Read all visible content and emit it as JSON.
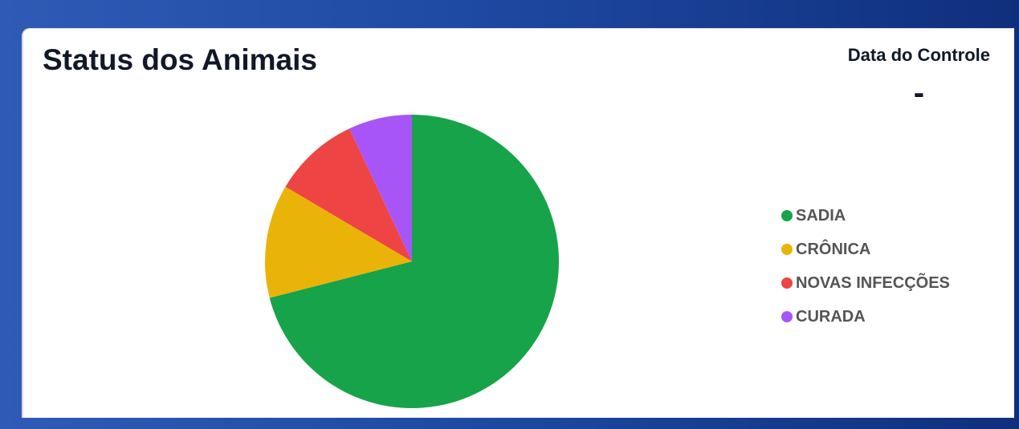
{
  "card": {
    "title": "Status dos Animais",
    "date_label": "Data do Controle",
    "date_value": "-"
  },
  "chart_data": {
    "type": "pie",
    "title": "Status dos Animais",
    "categories": [
      "SADIA",
      "CRÔNICA",
      "NOVAS INFECÇÕES",
      "CURADA"
    ],
    "values": [
      71,
      12.5,
      9.5,
      7
    ],
    "unit": "percent (estimated from slice angles)",
    "colors": [
      "#16a34a",
      "#eab308",
      "#ef4444",
      "#a855f7"
    ],
    "legend_position": "right"
  }
}
